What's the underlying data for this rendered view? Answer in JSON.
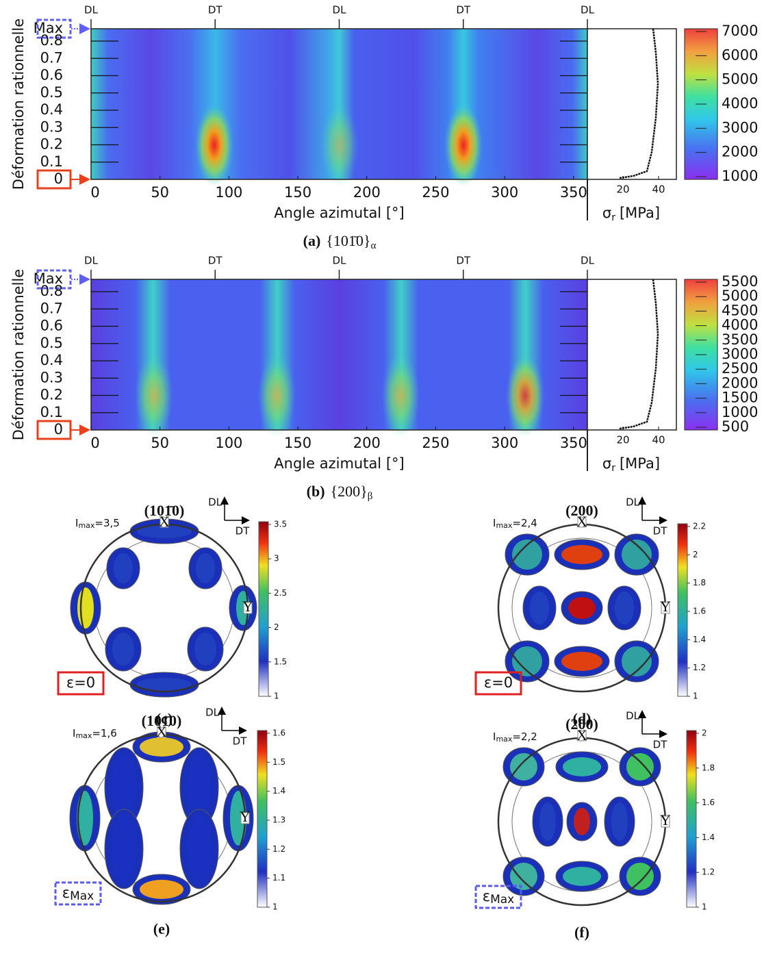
{
  "panels": [
    {
      "top_labels": [
        "DL",
        "DT",
        "DL",
        "DT",
        "DL"
      ],
      "ylabel": "Déformation rationnelle",
      "yticks": [
        "Max",
        0.8,
        0.7,
        0.6,
        0.5,
        0.4,
        0.3,
        0.2,
        0.1,
        0
      ],
      "xlabel": "Angle azimutal [°]",
      "xlim": [
        0,
        360
      ],
      "xticks": [
        0,
        50,
        100,
        150,
        200,
        250,
        300,
        350
      ],
      "stress_label": {
        "symbol": "σ",
        "sub": "r",
        "unit": "[MPa]"
      },
      "stress_xlim": [
        0,
        50
      ],
      "stress_ticks": [
        20,
        40
      ],
      "colorbar_ticks": [
        7000,
        6000,
        5000,
        4000,
        3000,
        2000,
        1000
      ],
      "caption": {
        "label": "(a)",
        "text": "{101̄0}",
        "sub": "α"
      }
    },
    {
      "top_labels": [
        "DL",
        "DT",
        "DL",
        "DT",
        "DL"
      ],
      "ylabel": "Déformation rationnelle",
      "yticks": [
        "Max",
        0.8,
        0.7,
        0.6,
        0.5,
        0.4,
        0.3,
        0.2,
        0.1,
        0
      ],
      "xlabel": "Angle azimutal [°]",
      "xlim": [
        0,
        360
      ],
      "xticks": [
        0,
        50,
        100,
        150,
        200,
        250,
        300,
        350
      ],
      "stress_label": {
        "symbol": "σ",
        "sub": "r",
        "unit": "[MPa]"
      },
      "stress_xlim": [
        0,
        50
      ],
      "stress_ticks": [
        20,
        40
      ],
      "colorbar_ticks": [
        5500,
        5000,
        4500,
        4000,
        3500,
        3000,
        2500,
        2000,
        1500,
        1000,
        500
      ],
      "caption": {
        "label": "(b)",
        "text": "{200}",
        "sub": "β"
      }
    }
  ],
  "pole_figures": [
    {
      "imax": {
        "symbol": "I",
        "sub": "max",
        "value": "=3,5"
      },
      "plane": "(101̄0)",
      "x_marker": "X",
      "y_marker": "Y",
      "dl": "DL",
      "dt": "DT",
      "colorbar_ticks": [
        3.5,
        3,
        2.5,
        2,
        1.5,
        1
      ],
      "strain": {
        "symbol": "ε=0"
      },
      "caption": "(c)"
    },
    {
      "imax": {
        "symbol": "I",
        "sub": "max",
        "value": "=2,4"
      },
      "plane": "(200)",
      "x_marker": "X",
      "y_marker": "Y",
      "dl": "DL",
      "dt": "DT",
      "colorbar_ticks": [
        2.2,
        2,
        1.8,
        1.6,
        1.4,
        1.2,
        1
      ],
      "strain": {
        "symbol": "ε=0"
      },
      "caption": "(d)"
    },
    {
      "imax": {
        "symbol": "I",
        "sub": "max",
        "value": "=1,6"
      },
      "plane": "(101̄0)",
      "x_marker": "X",
      "y_marker": "Y",
      "dl": "DL",
      "dt": "DT",
      "colorbar_ticks": [
        1.6,
        1.5,
        1.4,
        1.3,
        1.2,
        1.1,
        1
      ],
      "strain": {
        "symbol": "ε",
        "sub": "Max"
      },
      "caption": "(e)"
    },
    {
      "imax": {
        "symbol": "I",
        "sub": "max",
        "value": "=2,2"
      },
      "plane": "(200)",
      "x_marker": "X",
      "y_marker": "Y",
      "dl": "DL",
      "dt": "DT",
      "colorbar_ticks": [
        2,
        1.8,
        1.6,
        1.4,
        1.2,
        1
      ],
      "strain": {
        "symbol": "ε",
        "sub": "Max"
      },
      "caption": "(f)"
    }
  ]
}
